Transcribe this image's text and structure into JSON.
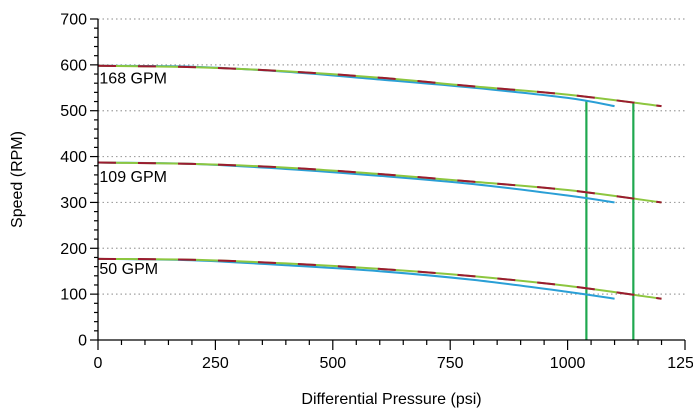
{
  "chart_data": {
    "type": "line",
    "title": "",
    "xlabel": "Differential Pressure (psi)",
    "ylabel": "Speed (RPM)",
    "xlim": [
      0,
      1250
    ],
    "ylim": [
      0,
      700
    ],
    "x_ticks": [
      0,
      250,
      500,
      750,
      1000,
      1250
    ],
    "y_ticks": [
      0,
      100,
      200,
      300,
      400,
      500,
      600,
      700
    ],
    "grid": "horizontal dotted",
    "legend": "none",
    "annotations": [
      {
        "text": "168 GPM",
        "x": 20,
        "y": 555
      },
      {
        "text": "109 GPM",
        "x": 20,
        "y": 340
      },
      {
        "text": "50 GPM",
        "x": 20,
        "y": 140
      }
    ],
    "colors": {
      "blue": "#2a9fd6",
      "green": "#8dc63f",
      "red": "#9b1b30",
      "vline": "#1fa84f",
      "grid": "#a0a0a0"
    },
    "series": [
      {
        "group": "168 GPM",
        "style": "blue",
        "x": [
          0,
          200,
          400,
          600,
          800,
          1000,
          1100
        ],
        "y": [
          598,
          596,
          585,
          568,
          550,
          528,
          510
        ]
      },
      {
        "group": "168 GPM",
        "style": "green",
        "x": [
          0,
          200,
          400,
          600,
          800,
          1000,
          1200
        ],
        "y": [
          598,
          595,
          586,
          572,
          553,
          535,
          510
        ]
      },
      {
        "group": "168 GPM",
        "style": "red-dashed",
        "x": [
          0,
          200,
          400,
          600,
          800,
          1000,
          1200
        ],
        "y": [
          598,
          595,
          586,
          572,
          553,
          535,
          510
        ]
      },
      {
        "group": "109 GPM",
        "style": "blue",
        "x": [
          0,
          200,
          400,
          600,
          800,
          1000,
          1100
        ],
        "y": [
          387,
          384,
          373,
          358,
          340,
          315,
          300
        ]
      },
      {
        "group": "109 GPM",
        "style": "green",
        "x": [
          0,
          200,
          400,
          600,
          800,
          1000,
          1200
        ],
        "y": [
          387,
          384,
          376,
          362,
          345,
          327,
          300
        ]
      },
      {
        "group": "109 GPM",
        "style": "red-dashed",
        "x": [
          0,
          200,
          400,
          600,
          800,
          1000,
          1200
        ],
        "y": [
          387,
          384,
          376,
          362,
          345,
          327,
          300
        ]
      },
      {
        "group": "50 GPM",
        "style": "blue",
        "x": [
          0,
          200,
          400,
          600,
          800,
          1000,
          1100
        ],
        "y": [
          177,
          174,
          163,
          150,
          131,
          105,
          90
        ]
      },
      {
        "group": "50 GPM",
        "style": "green",
        "x": [
          0,
          200,
          400,
          600,
          800,
          1000,
          1200
        ],
        "y": [
          177,
          175,
          167,
          155,
          139,
          118,
          90
        ]
      },
      {
        "group": "50 GPM",
        "style": "red-dashed",
        "x": [
          0,
          200,
          400,
          600,
          800,
          1000,
          1200
        ],
        "y": [
          177,
          175,
          167,
          155,
          139,
          118,
          90
        ]
      }
    ],
    "vertical_lines": [
      {
        "x": 1040,
        "y_top": 520
      },
      {
        "x": 1140,
        "y_top": 520
      }
    ]
  }
}
